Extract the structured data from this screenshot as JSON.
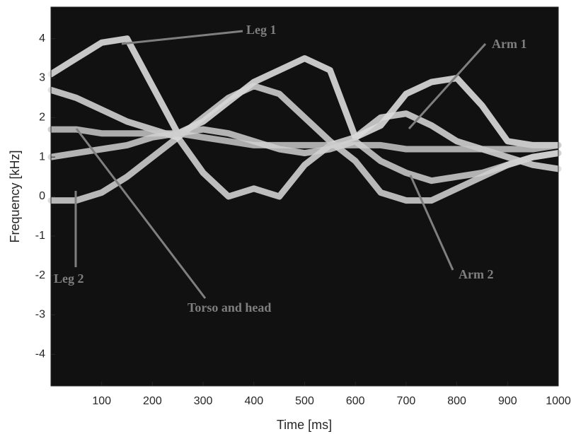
{
  "chart_data": {
    "type": "line",
    "xlabel": "Time [ms]",
    "ylabel": "Frequency [kHz]",
    "x": [
      0,
      50,
      100,
      150,
      200,
      250,
      300,
      350,
      400,
      450,
      500,
      550,
      600,
      650,
      700,
      750,
      800,
      850,
      900,
      950,
      1000
    ],
    "series": [
      {
        "color": "#e8e8e8",
        "values": [
          3.1,
          3.5,
          3.9,
          4.0,
          2.8,
          1.6,
          1.9,
          2.4,
          2.9,
          3.2,
          3.5,
          3.2,
          1.5,
          1.8,
          2.6,
          2.9,
          3.0,
          2.3,
          1.4,
          1.3,
          1.3
        ]
      },
      {
        "color": "#d6d6d6",
        "values": [
          -0.1,
          -0.1,
          0.1,
          0.5,
          1.0,
          1.5,
          2.0,
          2.5,
          2.8,
          2.6,
          2.0,
          1.4,
          0.9,
          0.1,
          -0.1,
          -0.1,
          0.2,
          0.5,
          0.8,
          1.0,
          1.1
        ]
      },
      {
        "color": "#dcdcdc",
        "values": [
          2.7,
          2.5,
          2.2,
          1.9,
          1.7,
          1.5,
          0.6,
          0.0,
          0.2,
          0.0,
          0.8,
          1.3,
          1.5,
          2.0,
          2.1,
          1.8,
          1.4,
          1.2,
          1.0,
          0.8,
          0.7
        ]
      },
      {
        "color": "#c8c8c8",
        "values": [
          1.7,
          1.7,
          1.6,
          1.6,
          1.6,
          1.6,
          1.5,
          1.4,
          1.3,
          1.3,
          1.3,
          1.3,
          1.3,
          1.3,
          1.2,
          1.2,
          1.2,
          1.2,
          1.2,
          1.2,
          1.3
        ]
      },
      {
        "color": "#d0d0d0",
        "values": [
          1.0,
          1.1,
          1.2,
          1.3,
          1.5,
          1.6,
          1.7,
          1.6,
          1.4,
          1.2,
          1.1,
          1.2,
          1.4,
          0.9,
          0.6,
          0.4,
          0.5,
          0.6,
          0.8,
          1.0,
          1.1
        ]
      }
    ],
    "xlim": [
      0,
      1000
    ],
    "xticks": [
      100,
      200,
      300,
      400,
      500,
      600,
      700,
      800,
      900,
      1000
    ],
    "ylim": [
      -4.8,
      4.8
    ],
    "yticks": [
      -4,
      -3,
      -2,
      -1,
      0,
      1,
      2,
      3,
      4
    ],
    "background": "#111111",
    "annotation_color": "#7f7f7f",
    "annotations": [
      "Leg 1",
      "Arm 1",
      "Leg 2",
      "Torso and head",
      "Arm 2"
    ]
  }
}
